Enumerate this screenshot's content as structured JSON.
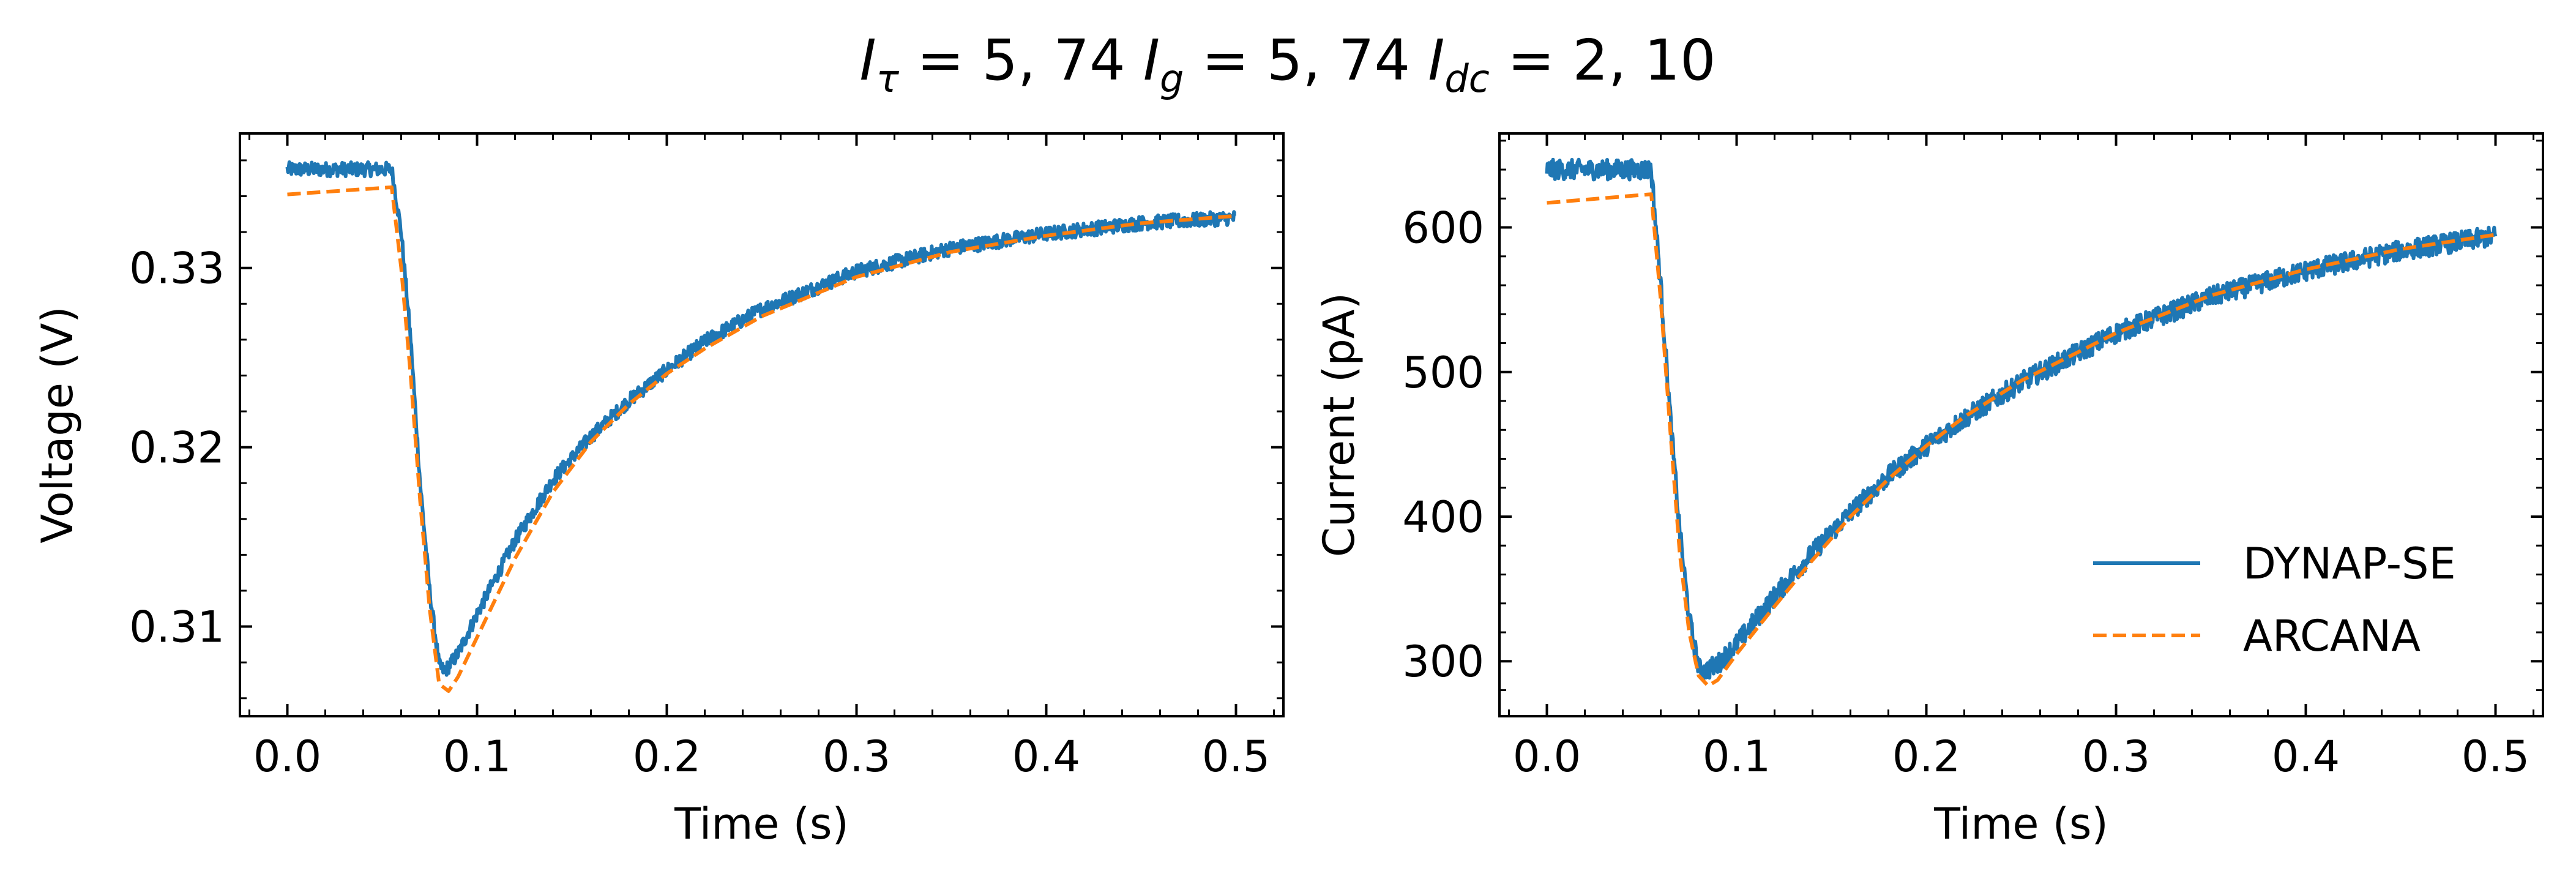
{
  "figure": {
    "suptitle_parts": [
      "I",
      "τ",
      " = 5, 74 ",
      "I",
      "g",
      " = 5, 74 ",
      "I",
      "dc",
      " = 2, 10"
    ]
  },
  "colors": {
    "dynap": "#1f77b4",
    "arcana": "#ff7f0e",
    "axes": "#000000",
    "background": "#ffffff"
  },
  "chart_data": [
    {
      "type": "line",
      "title": "",
      "xlabel": "Time (s)",
      "ylabel": "Voltage (V)",
      "xlim": [
        -0.025,
        0.525
      ],
      "ylim": [
        0.305,
        0.3375
      ],
      "xticks": [
        0.0,
        0.1,
        0.2,
        0.3,
        0.4,
        0.5
      ],
      "xtick_labels": [
        "0.0",
        "0.1",
        "0.2",
        "0.3",
        "0.4",
        "0.5"
      ],
      "yticks": [
        0.31,
        0.32,
        0.33
      ],
      "ytick_labels": [
        "0.31",
        "0.32",
        "0.33"
      ],
      "x_minor_step": 0.02,
      "y_minor_step": 0.002,
      "grid": false,
      "series": [
        {
          "name": "DYNAP-SE",
          "style": "solid",
          "noise": 0.0004,
          "points": [
            [
              0.0,
              0.3355
            ],
            [
              0.055,
              0.3355
            ],
            [
              0.06,
              0.332
            ],
            [
              0.065,
              0.326
            ],
            [
              0.07,
              0.318
            ],
            [
              0.075,
              0.312
            ],
            [
              0.08,
              0.3078
            ],
            [
              0.083,
              0.3075
            ],
            [
              0.09,
              0.3085
            ],
            [
              0.1,
              0.3107
            ],
            [
              0.12,
              0.3148
            ],
            [
              0.14,
              0.3182
            ],
            [
              0.16,
              0.3206
            ],
            [
              0.18,
              0.3226
            ],
            [
              0.2,
              0.3243
            ],
            [
              0.22,
              0.3259
            ],
            [
              0.25,
              0.3277
            ],
            [
              0.3,
              0.3298
            ],
            [
              0.35,
              0.3311
            ],
            [
              0.4,
              0.3319
            ],
            [
              0.45,
              0.3325
            ],
            [
              0.5,
              0.3328
            ]
          ]
        },
        {
          "name": "ARCANA",
          "style": "dashed",
          "noise": 0,
          "points": [
            [
              0.0,
              0.3341
            ],
            [
              0.055,
              0.3345
            ],
            [
              0.06,
              0.33
            ],
            [
              0.065,
              0.324
            ],
            [
              0.07,
              0.317
            ],
            [
              0.075,
              0.311
            ],
            [
              0.08,
              0.3068
            ],
            [
              0.085,
              0.3064
            ],
            [
              0.09,
              0.3072
            ],
            [
              0.1,
              0.3094
            ],
            [
              0.12,
              0.3138
            ],
            [
              0.14,
              0.3175
            ],
            [
              0.16,
              0.3203
            ],
            [
              0.18,
              0.3224
            ],
            [
              0.2,
              0.3241
            ],
            [
              0.22,
              0.3255
            ],
            [
              0.25,
              0.3273
            ],
            [
              0.3,
              0.3295
            ],
            [
              0.35,
              0.3309
            ],
            [
              0.4,
              0.3318
            ],
            [
              0.45,
              0.3325
            ],
            [
              0.5,
              0.3329
            ]
          ]
        }
      ]
    },
    {
      "type": "line",
      "title": "",
      "xlabel": "Time (s)",
      "ylabel": "Current (pA)",
      "xlim": [
        -0.025,
        0.525
      ],
      "ylim": [
        262,
        665
      ],
      "xticks": [
        0.0,
        0.1,
        0.2,
        0.3,
        0.4,
        0.5
      ],
      "xtick_labels": [
        "0.0",
        "0.1",
        "0.2",
        "0.3",
        "0.4",
        "0.5"
      ],
      "yticks": [
        300,
        400,
        500,
        600
      ],
      "ytick_labels": [
        "300",
        "400",
        "500",
        "600"
      ],
      "x_minor_step": 0.02,
      "y_minor_step": 20,
      "grid": false,
      "legend_position": "lower-right",
      "series": [
        {
          "name": "DYNAP-SE",
          "style": "solid",
          "noise": 7,
          "points": [
            [
              0.0,
              640
            ],
            [
              0.055,
              640
            ],
            [
              0.06,
              560
            ],
            [
              0.065,
              470
            ],
            [
              0.07,
              390
            ],
            [
              0.075,
              330
            ],
            [
              0.08,
              295
            ],
            [
              0.083,
              293
            ],
            [
              0.09,
              298
            ],
            [
              0.1,
              312
            ],
            [
              0.12,
              345
            ],
            [
              0.14,
              375
            ],
            [
              0.16,
              403
            ],
            [
              0.18,
              428
            ],
            [
              0.2,
              449
            ],
            [
              0.22,
              468
            ],
            [
              0.25,
              493
            ],
            [
              0.3,
              527
            ],
            [
              0.35,
              552
            ],
            [
              0.4,
              570
            ],
            [
              0.45,
              584
            ],
            [
              0.5,
              594
            ]
          ]
        },
        {
          "name": "ARCANA",
          "style": "dashed",
          "noise": 0,
          "points": [
            [
              0.0,
              617
            ],
            [
              0.055,
              623
            ],
            [
              0.06,
              550
            ],
            [
              0.065,
              460
            ],
            [
              0.07,
              375
            ],
            [
              0.075,
              320
            ],
            [
              0.08,
              290
            ],
            [
              0.085,
              283
            ],
            [
              0.09,
              287
            ],
            [
              0.1,
              305
            ],
            [
              0.12,
              338
            ],
            [
              0.14,
              370
            ],
            [
              0.16,
              400
            ],
            [
              0.18,
              426
            ],
            [
              0.2,
              449
            ],
            [
              0.22,
              469
            ],
            [
              0.25,
              494
            ],
            [
              0.3,
              527
            ],
            [
              0.35,
              553
            ],
            [
              0.4,
              571
            ],
            [
              0.45,
              585
            ],
            [
              0.5,
              595
            ]
          ]
        }
      ]
    }
  ]
}
